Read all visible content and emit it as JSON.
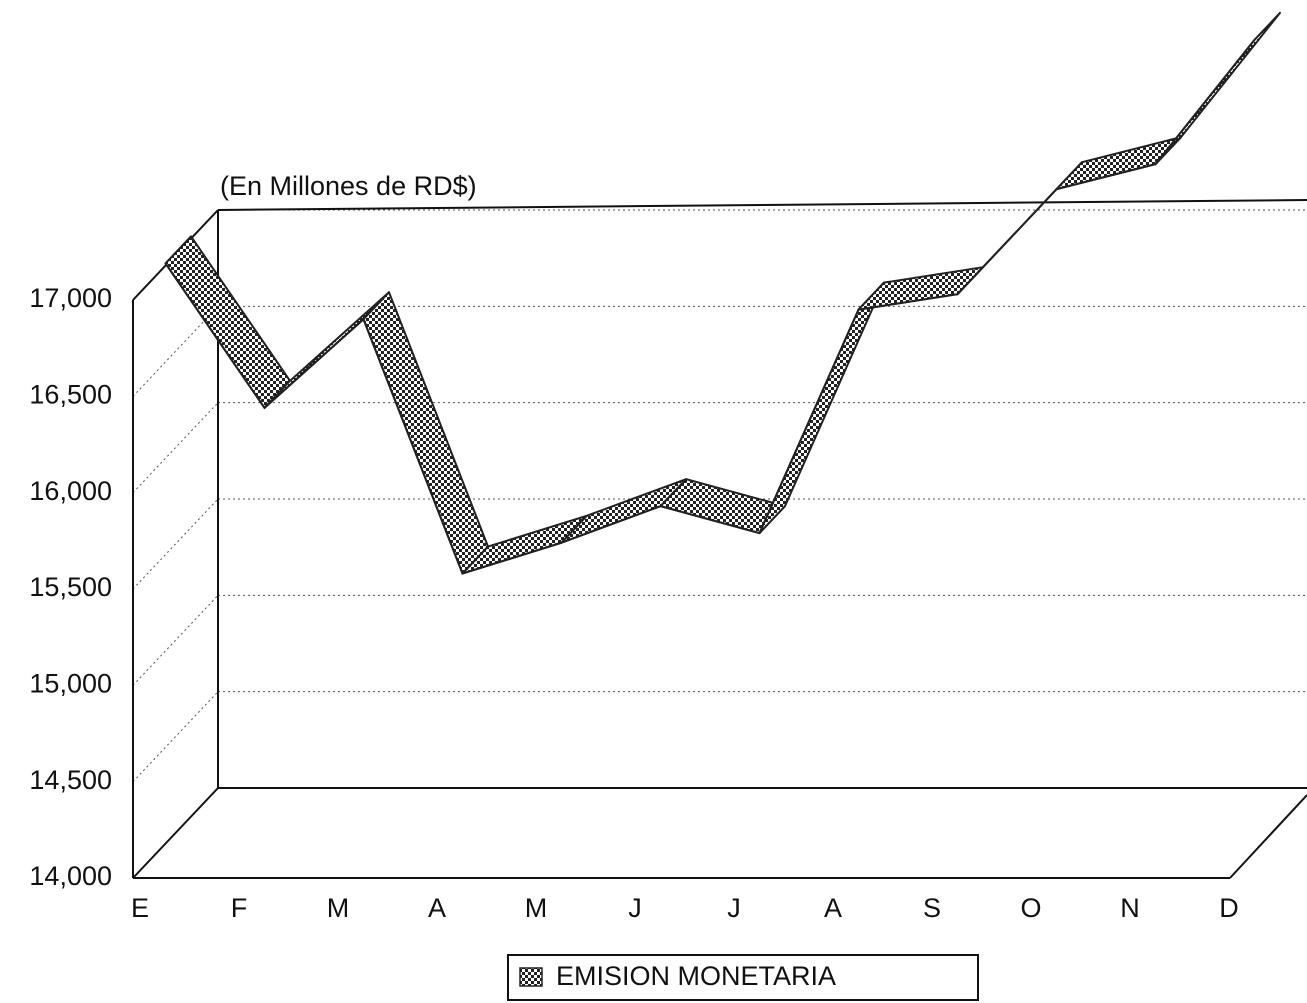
{
  "chart_data": {
    "type": "ribbon3d",
    "subtitle": "(En Millones de RD$)",
    "categories": [
      "E",
      "F",
      "M",
      "A",
      "M",
      "J",
      "J",
      "A",
      "S",
      "O",
      "N",
      "D"
    ],
    "series": [
      {
        "name": "EMISION MONETARIA",
        "color": "#222222",
        "values": [
          17050,
          16300,
          16760,
          15440,
          15600,
          15790,
          15650,
          16810,
          16890,
          17435,
          17565,
          18210
        ]
      }
    ],
    "ylim": [
      14000,
      17000
    ],
    "yticks": [
      {
        "value": 14000,
        "label": "14,000"
      },
      {
        "value": 14500,
        "label": "14,500"
      },
      {
        "value": 15000,
        "label": "15,000"
      },
      {
        "value": 15500,
        "label": "15,500"
      },
      {
        "value": 16000,
        "label": "16,000"
      },
      {
        "value": 16500,
        "label": "16,500"
      },
      {
        "value": 17000,
        "label": "17,000"
      }
    ],
    "grid": true
  }
}
